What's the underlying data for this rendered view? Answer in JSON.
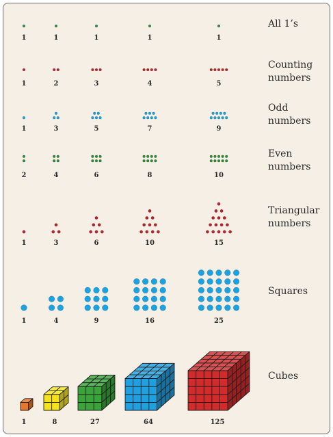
{
  "colors": {
    "panel_bg": "#f6efe5",
    "green": "#2e8a3c",
    "red": "#b5222a",
    "blue": "#1aa3e0",
    "orange": "#e6782a",
    "yellow": "#f4e31c",
    "cube_green": "#3aa43b",
    "cube_blue": "#1fa0e0",
    "cube_red": "#d22b2b"
  },
  "rows": [
    {
      "label": "All 1’s",
      "kind": "dots",
      "color": "green",
      "values": [
        "1",
        "1",
        "1",
        "1",
        "1"
      ]
    },
    {
      "label": "Counting numbers",
      "kind": "dots",
      "color": "red",
      "values": [
        "1",
        "2",
        "3",
        "4",
        "5"
      ]
    },
    {
      "label": "Odd numbers",
      "kind": "dots",
      "color": "blue",
      "values": [
        "1",
        "3",
        "5",
        "7",
        "9"
      ]
    },
    {
      "label": "Even numbers",
      "kind": "dots",
      "color": "green",
      "values": [
        "2",
        "4",
        "6",
        "8",
        "10"
      ]
    },
    {
      "label": "Triangular numbers",
      "kind": "triangle",
      "color": "red",
      "values": [
        "1",
        "3",
        "6",
        "10",
        "15"
      ]
    },
    {
      "label": "Squares",
      "kind": "square",
      "color": "blue",
      "values": [
        "1",
        "4",
        "9",
        "16",
        "25"
      ]
    },
    {
      "label": "Cubes",
      "kind": "cube",
      "values": [
        "1",
        "8",
        "27",
        "64",
        "125"
      ],
      "cube_colors": [
        "orange",
        "yellow",
        "cube_green",
        "cube_blue",
        "cube_red"
      ]
    }
  ]
}
